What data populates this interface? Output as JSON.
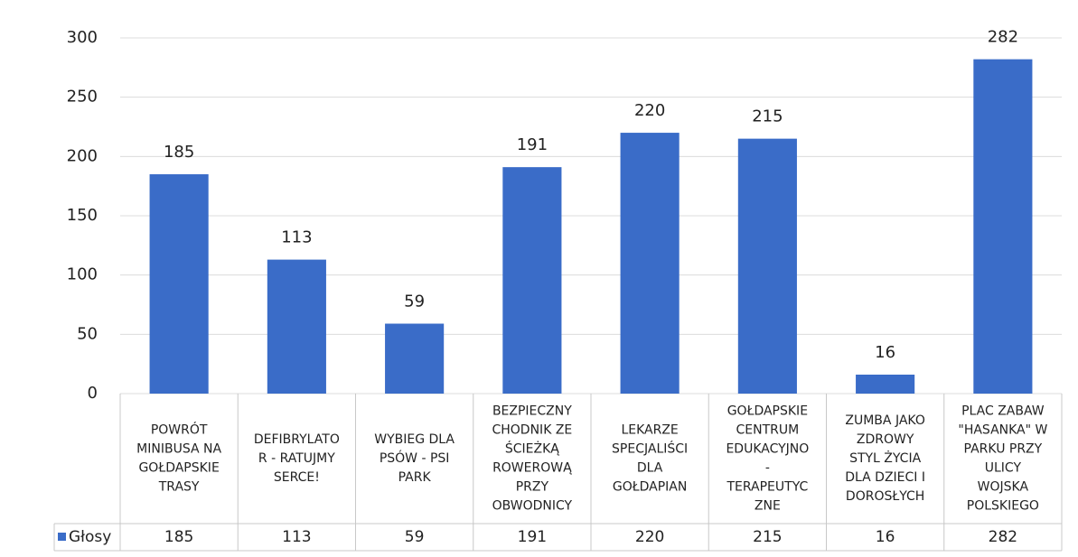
{
  "chart_data": {
    "type": "bar",
    "categories": [
      [
        "POWRÓT",
        "MINIBUSA NA",
        "GOŁDAPSKIE",
        "TRASY"
      ],
      [
        "DEFIBRYLATO",
        "R - RATUJMY",
        "SERCE!"
      ],
      [
        "WYBIEG DLA",
        "PSÓW - PSI",
        "PARK"
      ],
      [
        "BEZPIECZNY",
        "CHODNIK ZE",
        "ŚCIEŻKĄ",
        "ROWEROWĄ",
        "PRZY",
        "OBWODNICY"
      ],
      [
        "LEKARZE",
        "SPECJALIŚCI",
        "DLA",
        "GOŁDAPIAN"
      ],
      [
        "GOŁDAPSKIE",
        "CENTRUM",
        "EDUKACYJNO",
        "-",
        "TERAPEUTYC",
        "ZNE"
      ],
      [
        "ZUMBA JAKO",
        "ZDROWY",
        "STYL ŻYCIA",
        "DLA DZIECI I",
        "DOROSŁYCH"
      ],
      [
        "PLAC ZABAW",
        "\"HASANKA\" W",
        "PARKU PRZY",
        "ULICY",
        "WOJSKA",
        "POLSKIEGO"
      ]
    ],
    "series": [
      {
        "name": "Głosy",
        "color": "#3a6cc8",
        "values": [
          185,
          113,
          59,
          191,
          220,
          215,
          16,
          282
        ]
      }
    ],
    "ylim": [
      0,
      300
    ],
    "yticks": [
      0,
      50,
      100,
      150,
      200,
      250,
      300
    ],
    "grid": true
  }
}
